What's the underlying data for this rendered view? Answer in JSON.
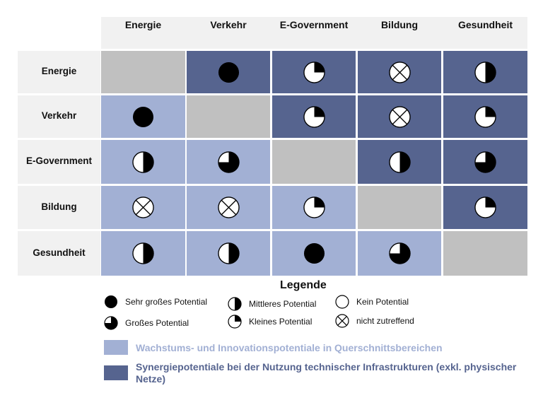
{
  "matrix": {
    "columns": [
      "Energie",
      "Verkehr",
      "E-Government",
      "Bildung",
      "Gesundheit"
    ],
    "rows": [
      {
        "label": "Energie",
        "cells": [
          {
            "fill": "diag",
            "symbol": "none"
          },
          {
            "fill": "dark",
            "symbol": "full"
          },
          {
            "fill": "dark",
            "symbol": "quarter"
          },
          {
            "fill": "dark",
            "symbol": "cross"
          },
          {
            "fill": "dark",
            "symbol": "half"
          }
        ]
      },
      {
        "label": "Verkehr",
        "cells": [
          {
            "fill": "light",
            "symbol": "full"
          },
          {
            "fill": "diag",
            "symbol": "none"
          },
          {
            "fill": "dark",
            "symbol": "quarter"
          },
          {
            "fill": "dark",
            "symbol": "cross"
          },
          {
            "fill": "dark",
            "symbol": "quarter"
          }
        ]
      },
      {
        "label": "E-Government",
        "cells": [
          {
            "fill": "light",
            "symbol": "half"
          },
          {
            "fill": "light",
            "symbol": "three-quarter"
          },
          {
            "fill": "diag",
            "symbol": "none"
          },
          {
            "fill": "dark",
            "symbol": "half"
          },
          {
            "fill": "dark",
            "symbol": "three-quarter"
          }
        ]
      },
      {
        "label": "Bildung",
        "cells": [
          {
            "fill": "light",
            "symbol": "cross"
          },
          {
            "fill": "light",
            "symbol": "cross"
          },
          {
            "fill": "light",
            "symbol": "quarter"
          },
          {
            "fill": "diag",
            "symbol": "none"
          },
          {
            "fill": "dark",
            "symbol": "quarter"
          }
        ]
      },
      {
        "label": "Gesundheit",
        "cells": [
          {
            "fill": "light",
            "symbol": "half"
          },
          {
            "fill": "light",
            "symbol": "half"
          },
          {
            "fill": "light",
            "symbol": "full"
          },
          {
            "fill": "light",
            "symbol": "three-quarter"
          },
          {
            "fill": "diag",
            "symbol": "none"
          }
        ]
      }
    ]
  },
  "legend": {
    "title": "Legende",
    "items": [
      {
        "symbol": "full",
        "label": "Sehr großes Potential"
      },
      {
        "symbol": "three-quarter",
        "label": "Großes Potential"
      },
      {
        "symbol": "half",
        "label": "Mittleres Potential"
      },
      {
        "symbol": "quarter",
        "label": "Kleines Potential"
      },
      {
        "symbol": "empty",
        "label": "Kein Potential"
      },
      {
        "symbol": "cross",
        "label": "nicht zutreffend"
      }
    ],
    "colors": [
      {
        "color": "#a2b0d4",
        "label": "Wachstums- und Innovationspotentiale in Querschnittsbereichen",
        "text_color": "#a2b0d4"
      },
      {
        "color": "#56648f",
        "label": "Synergiepotentiale bei der Nutzung technischer Infrastrukturen (exkl. physischer Netze)",
        "text_color": "#56648f"
      }
    ]
  }
}
